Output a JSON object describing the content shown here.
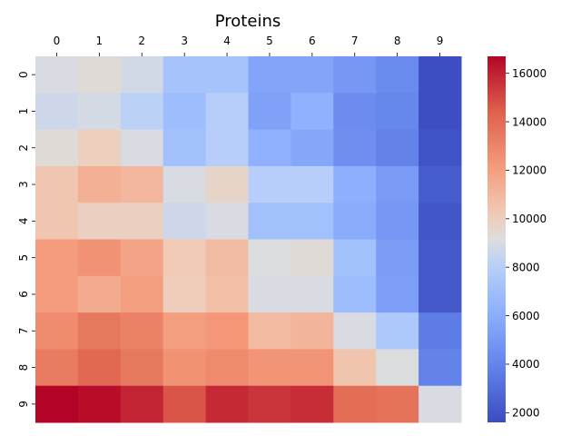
{
  "chart_data": {
    "type": "heatmap",
    "title": "Proteins",
    "x_categories": [
      "0",
      "1",
      "2",
      "3",
      "4",
      "5",
      "6",
      "7",
      "8",
      "9"
    ],
    "y_categories": [
      "0",
      "1",
      "2",
      "3",
      "4",
      "5",
      "6",
      "7",
      "8",
      "9"
    ],
    "x_axis_position": "top",
    "values": [
      [
        9000,
        9300,
        8800,
        7300,
        7300,
        5600,
        5600,
        4900,
        4300,
        1700
      ],
      [
        8700,
        8900,
        8200,
        6900,
        8000,
        5400,
        6200,
        4400,
        4100,
        1700
      ],
      [
        9300,
        10000,
        9000,
        7100,
        8000,
        6200,
        5700,
        4500,
        3900,
        1900
      ],
      [
        10400,
        11300,
        11000,
        9000,
        9700,
        8000,
        8000,
        6100,
        5100,
        2300
      ],
      [
        10400,
        9900,
        9900,
        8700,
        9000,
        7100,
        7100,
        5900,
        4900,
        2000
      ],
      [
        12100,
        12500,
        11800,
        10200,
        10800,
        9100,
        9300,
        7100,
        5200,
        2100
      ],
      [
        12100,
        11500,
        12000,
        10100,
        10700,
        9000,
        9000,
        6900,
        5300,
        2100
      ],
      [
        12700,
        13500,
        13100,
        12000,
        12300,
        10900,
        11100,
        9000,
        7600,
        3600
      ],
      [
        13400,
        14100,
        13500,
        12500,
        12800,
        12400,
        12400,
        10500,
        9100,
        3900
      ],
      [
        16700,
        16500,
        15900,
        14700,
        15800,
        15500,
        15700,
        13900,
        13700,
        9000
      ]
    ],
    "colorbar": {
      "min": 1600,
      "max": 16700,
      "ticks": [
        2000,
        4000,
        6000,
        8000,
        10000,
        12000,
        14000,
        16000
      ],
      "tick_labels": [
        "2000",
        "4000",
        "6000",
        "8000",
        "10000",
        "12000",
        "14000",
        "16000"
      ],
      "colormap": "coolwarm"
    }
  }
}
